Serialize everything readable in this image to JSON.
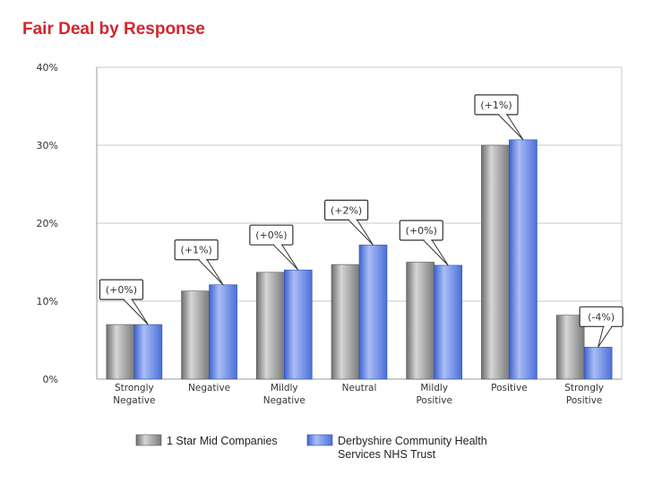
{
  "title": "Fair Deal by Response",
  "chart_data": {
    "type": "bar",
    "categories": [
      "Strongly Negative",
      "Negative",
      "Mildly Negative",
      "Neutral",
      "Mildly Positive",
      "Positive",
      "Strongly Positive"
    ],
    "series": [
      {
        "name": "1 Star Mid Companies",
        "values": [
          7,
          11.3,
          13.7,
          14.7,
          15.0,
          30.0,
          8.2
        ],
        "color": "#8c8c8c"
      },
      {
        "name": "Derbyshire Community Health Services NHS Trust",
        "values": [
          7,
          12.1,
          14.0,
          17.2,
          14.6,
          30.7,
          4.1
        ],
        "color": "#5b7fe0"
      }
    ],
    "annotations": [
      "(+0%)",
      "(+1%)",
      "(+0%)",
      "(+2%)",
      "(+0%)",
      "(+1%)",
      "(-4%)"
    ],
    "ylim": [
      0,
      40
    ],
    "yticks": [
      "0%",
      "10%",
      "20%",
      "30%",
      "40%"
    ],
    "xlabel": "",
    "ylabel": "",
    "legend_position": "bottom"
  }
}
